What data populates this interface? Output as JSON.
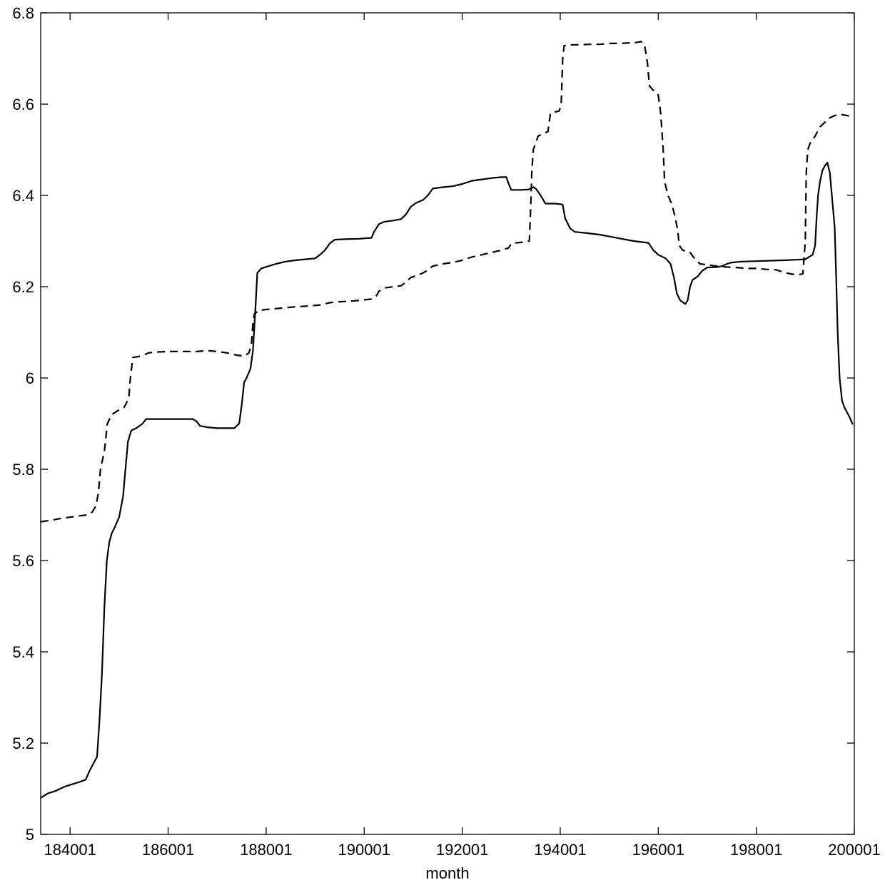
{
  "chart_data": {
    "type": "line",
    "title": "",
    "xlabel": "month",
    "ylabel": "",
    "xlim": [
      1834,
      2000
    ],
    "ylim": [
      5.0,
      6.8
    ],
    "x_ticks": [
      {
        "value": 1840,
        "label": "184001"
      },
      {
        "value": 1860,
        "label": "186001"
      },
      {
        "value": 1880,
        "label": "188001"
      },
      {
        "value": 1900,
        "label": "190001"
      },
      {
        "value": 1920,
        "label": "192001"
      },
      {
        "value": 1940,
        "label": "194001"
      },
      {
        "value": 1960,
        "label": "196001"
      },
      {
        "value": 1980,
        "label": "198001"
      },
      {
        "value": 2000,
        "label": "200001"
      }
    ],
    "y_ticks": [
      {
        "value": 5.0,
        "label": "5"
      },
      {
        "value": 5.2,
        "label": "5.2"
      },
      {
        "value": 5.4,
        "label": "5.4"
      },
      {
        "value": 5.6,
        "label": "5.6"
      },
      {
        "value": 5.8,
        "label": "5.8"
      },
      {
        "value": 6.0,
        "label": "6"
      },
      {
        "value": 6.2,
        "label": "6.2"
      },
      {
        "value": 6.4,
        "label": "6.4"
      },
      {
        "value": 6.6,
        "label": "6.6"
      },
      {
        "value": 6.8,
        "label": "6.8"
      }
    ],
    "grid": false,
    "legend": "none",
    "series": [
      {
        "style": "solid",
        "color": "#000000",
        "points": [
          [
            1834.0,
            5.08
          ],
          [
            1835.5,
            5.09
          ],
          [
            1837.0,
            5.095
          ],
          [
            1839.0,
            5.105
          ],
          [
            1840.5,
            5.11
          ],
          [
            1842.0,
            5.115
          ],
          [
            1843.2,
            5.12
          ],
          [
            1844.0,
            5.14
          ],
          [
            1845.0,
            5.16
          ],
          [
            1845.5,
            5.17
          ],
          [
            1846.0,
            5.25
          ],
          [
            1846.5,
            5.35
          ],
          [
            1847.0,
            5.5
          ],
          [
            1847.5,
            5.6
          ],
          [
            1848.0,
            5.64
          ],
          [
            1848.5,
            5.66
          ],
          [
            1849.2,
            5.675
          ],
          [
            1850.0,
            5.695
          ],
          [
            1850.8,
            5.74
          ],
          [
            1851.3,
            5.8
          ],
          [
            1851.8,
            5.86
          ],
          [
            1852.5,
            5.885
          ],
          [
            1853.5,
            5.89
          ],
          [
            1854.8,
            5.9
          ],
          [
            1855.5,
            5.91
          ],
          [
            1857.0,
            5.91
          ],
          [
            1859.0,
            5.91
          ],
          [
            1861.0,
            5.91
          ],
          [
            1863.0,
            5.91
          ],
          [
            1865.0,
            5.91
          ],
          [
            1865.8,
            5.905
          ],
          [
            1866.5,
            5.895
          ],
          [
            1868.0,
            5.892
          ],
          [
            1870.0,
            5.89
          ],
          [
            1872.0,
            5.89
          ],
          [
            1873.5,
            5.89
          ],
          [
            1874.5,
            5.9
          ],
          [
            1875.0,
            5.94
          ],
          [
            1875.5,
            5.99
          ],
          [
            1876.0,
            6.0
          ],
          [
            1876.8,
            6.02
          ],
          [
            1877.3,
            6.06
          ],
          [
            1877.8,
            6.15
          ],
          [
            1878.2,
            6.23
          ],
          [
            1879.0,
            6.24
          ],
          [
            1880.5,
            6.245
          ],
          [
            1882.0,
            6.25
          ],
          [
            1884.0,
            6.255
          ],
          [
            1886.0,
            6.258
          ],
          [
            1888.0,
            6.26
          ],
          [
            1890.0,
            6.262
          ],
          [
            1891.0,
            6.27
          ],
          [
            1892.0,
            6.28
          ],
          [
            1893.0,
            6.295
          ],
          [
            1894.0,
            6.303
          ],
          [
            1896.0,
            6.304
          ],
          [
            1899.0,
            6.305
          ],
          [
            1901.5,
            6.307
          ],
          [
            1902.0,
            6.32
          ],
          [
            1903.0,
            6.337
          ],
          [
            1904.0,
            6.342
          ],
          [
            1906.0,
            6.345
          ],
          [
            1907.5,
            6.348
          ],
          [
            1908.5,
            6.358
          ],
          [
            1909.5,
            6.375
          ],
          [
            1910.5,
            6.383
          ],
          [
            1912.0,
            6.39
          ],
          [
            1913.0,
            6.4
          ],
          [
            1914.0,
            6.415
          ],
          [
            1916.0,
            6.418
          ],
          [
            1918.0,
            6.42
          ],
          [
            1920.0,
            6.425
          ],
          [
            1922.0,
            6.432
          ],
          [
            1924.0,
            6.435
          ],
          [
            1926.0,
            6.438
          ],
          [
            1928.0,
            6.44
          ],
          [
            1929.0,
            6.44
          ],
          [
            1929.5,
            6.425
          ],
          [
            1930.0,
            6.412
          ],
          [
            1932.0,
            6.412
          ],
          [
            1933.5,
            6.413
          ],
          [
            1934.5,
            6.418
          ],
          [
            1935.0,
            6.415
          ],
          [
            1936.0,
            6.4
          ],
          [
            1937.0,
            6.382
          ],
          [
            1939.0,
            6.382
          ],
          [
            1940.5,
            6.38
          ],
          [
            1941.0,
            6.35
          ],
          [
            1942.0,
            6.328
          ],
          [
            1943.0,
            6.32
          ],
          [
            1945.0,
            6.318
          ],
          [
            1948.0,
            6.314
          ],
          [
            1950.0,
            6.31
          ],
          [
            1952.0,
            6.306
          ],
          [
            1955.0,
            6.3
          ],
          [
            1958.0,
            6.296
          ],
          [
            1959.0,
            6.28
          ],
          [
            1960.0,
            6.27
          ],
          [
            1961.5,
            6.262
          ],
          [
            1962.5,
            6.25
          ],
          [
            1963.2,
            6.22
          ],
          [
            1963.8,
            6.185
          ],
          [
            1964.5,
            6.17
          ],
          [
            1965.5,
            6.162
          ],
          [
            1966.0,
            6.17
          ],
          [
            1966.5,
            6.2
          ],
          [
            1967.0,
            6.215
          ],
          [
            1968.0,
            6.222
          ],
          [
            1969.0,
            6.235
          ],
          [
            1970.0,
            6.242
          ],
          [
            1972.0,
            6.243
          ],
          [
            1973.0,
            6.245
          ],
          [
            1974.0,
            6.25
          ],
          [
            1975.0,
            6.253
          ],
          [
            1977.0,
            6.255
          ],
          [
            1980.0,
            6.256
          ],
          [
            1983.0,
            6.257
          ],
          [
            1986.0,
            6.258
          ],
          [
            1988.0,
            6.259
          ],
          [
            1990.0,
            6.26
          ],
          [
            1991.5,
            6.27
          ],
          [
            1992.0,
            6.29
          ],
          [
            1992.3,
            6.35
          ],
          [
            1992.6,
            6.4
          ],
          [
            1993.0,
            6.43
          ],
          [
            1993.5,
            6.455
          ],
          [
            1994.0,
            6.465
          ],
          [
            1994.5,
            6.472
          ],
          [
            1995.0,
            6.45
          ],
          [
            1995.5,
            6.39
          ],
          [
            1996.0,
            6.33
          ],
          [
            1996.3,
            6.22
          ],
          [
            1996.6,
            6.1
          ],
          [
            1997.0,
            6.0
          ],
          [
            1997.5,
            5.95
          ],
          [
            1998.0,
            5.935
          ],
          [
            1999.0,
            5.915
          ],
          [
            1999.7,
            5.898
          ]
        ]
      },
      {
        "style": "dashed",
        "color": "#000000",
        "points": [
          [
            1834.0,
            5.685
          ],
          [
            1836.0,
            5.688
          ],
          [
            1838.0,
            5.692
          ],
          [
            1840.0,
            5.695
          ],
          [
            1842.0,
            5.698
          ],
          [
            1843.5,
            5.7
          ],
          [
            1844.5,
            5.706
          ],
          [
            1845.3,
            5.72
          ],
          [
            1845.8,
            5.75
          ],
          [
            1846.2,
            5.8
          ],
          [
            1847.0,
            5.84
          ],
          [
            1847.6,
            5.9
          ],
          [
            1848.5,
            5.92
          ],
          [
            1850.0,
            5.93
          ],
          [
            1851.0,
            5.935
          ],
          [
            1851.5,
            5.945
          ],
          [
            1852.0,
            5.96
          ],
          [
            1852.3,
            6.0
          ],
          [
            1852.8,
            6.045
          ],
          [
            1854.0,
            6.047
          ],
          [
            1855.0,
            6.05
          ],
          [
            1856.0,
            6.055
          ],
          [
            1858.0,
            6.057
          ],
          [
            1860.0,
            6.058
          ],
          [
            1863.0,
            6.058
          ],
          [
            1866.0,
            6.058
          ],
          [
            1868.0,
            6.06
          ],
          [
            1870.0,
            6.058
          ],
          [
            1872.0,
            6.055
          ],
          [
            1874.0,
            6.05
          ],
          [
            1875.5,
            6.048
          ],
          [
            1876.5,
            6.055
          ],
          [
            1877.0,
            6.075
          ],
          [
            1877.3,
            6.12
          ],
          [
            1877.6,
            6.14
          ],
          [
            1878.5,
            6.148
          ],
          [
            1880.0,
            6.15
          ],
          [
            1883.0,
            6.153
          ],
          [
            1886.0,
            6.156
          ],
          [
            1889.0,
            6.158
          ],
          [
            1891.0,
            6.16
          ],
          [
            1893.0,
            6.165
          ],
          [
            1895.0,
            6.167
          ],
          [
            1897.0,
            6.168
          ],
          [
            1899.0,
            6.17
          ],
          [
            1901.5,
            6.173
          ],
          [
            1902.5,
            6.18
          ],
          [
            1903.0,
            6.19
          ],
          [
            1904.0,
            6.197
          ],
          [
            1906.0,
            6.2
          ],
          [
            1907.5,
            6.202
          ],
          [
            1908.5,
            6.21
          ],
          [
            1909.5,
            6.22
          ],
          [
            1911.0,
            6.225
          ],
          [
            1912.5,
            6.233
          ],
          [
            1914.0,
            6.245
          ],
          [
            1916.0,
            6.25
          ],
          [
            1918.0,
            6.253
          ],
          [
            1920.0,
            6.258
          ],
          [
            1922.0,
            6.265
          ],
          [
            1924.0,
            6.27
          ],
          [
            1926.0,
            6.275
          ],
          [
            1928.0,
            6.28
          ],
          [
            1929.5,
            6.285
          ],
          [
            1930.0,
            6.295
          ],
          [
            1932.0,
            6.297
          ],
          [
            1933.0,
            6.298
          ],
          [
            1933.7,
            6.3
          ],
          [
            1934.0,
            6.38
          ],
          [
            1934.2,
            6.45
          ],
          [
            1934.5,
            6.5
          ],
          [
            1935.5,
            6.53
          ],
          [
            1936.5,
            6.535
          ],
          [
            1937.5,
            6.54
          ],
          [
            1938.0,
            6.58
          ],
          [
            1939.0,
            6.583
          ],
          [
            1939.8,
            6.585
          ],
          [
            1940.2,
            6.6
          ],
          [
            1940.5,
            6.7
          ],
          [
            1940.8,
            6.728
          ],
          [
            1942.0,
            6.73
          ],
          [
            1944.0,
            6.73
          ],
          [
            1946.0,
            6.731
          ],
          [
            1948.0,
            6.731
          ],
          [
            1950.0,
            6.733
          ],
          [
            1952.0,
            6.733
          ],
          [
            1954.0,
            6.734
          ],
          [
            1955.5,
            6.735
          ],
          [
            1956.5,
            6.737
          ],
          [
            1957.2,
            6.73
          ],
          [
            1957.8,
            6.69
          ],
          [
            1958.2,
            6.64
          ],
          [
            1959.0,
            6.63
          ],
          [
            1960.0,
            6.62
          ],
          [
            1960.5,
            6.58
          ],
          [
            1961.0,
            6.5
          ],
          [
            1961.3,
            6.43
          ],
          [
            1962.0,
            6.4
          ],
          [
            1962.8,
            6.38
          ],
          [
            1963.5,
            6.35
          ],
          [
            1964.0,
            6.32
          ],
          [
            1964.3,
            6.29
          ],
          [
            1965.0,
            6.28
          ],
          [
            1966.5,
            6.275
          ],
          [
            1967.5,
            6.26
          ],
          [
            1968.5,
            6.25
          ],
          [
            1970.0,
            6.248
          ],
          [
            1972.0,
            6.245
          ],
          [
            1974.0,
            6.243
          ],
          [
            1976.0,
            6.242
          ],
          [
            1978.0,
            6.24
          ],
          [
            1980.0,
            6.24
          ],
          [
            1982.0,
            6.238
          ],
          [
            1984.0,
            6.237
          ],
          [
            1985.5,
            6.232
          ],
          [
            1987.0,
            6.228
          ],
          [
            1988.5,
            6.226
          ],
          [
            1989.5,
            6.228
          ],
          [
            1990.0,
            6.3
          ],
          [
            1990.2,
            6.45
          ],
          [
            1990.5,
            6.5
          ],
          [
            1991.0,
            6.515
          ],
          [
            1992.0,
            6.53
          ],
          [
            1993.0,
            6.55
          ],
          [
            1994.0,
            6.56
          ],
          [
            1995.0,
            6.57
          ],
          [
            1996.0,
            6.575
          ],
          [
            1997.0,
            6.578
          ],
          [
            1998.5,
            6.575
          ],
          [
            1999.8,
            6.572
          ]
        ]
      }
    ]
  }
}
